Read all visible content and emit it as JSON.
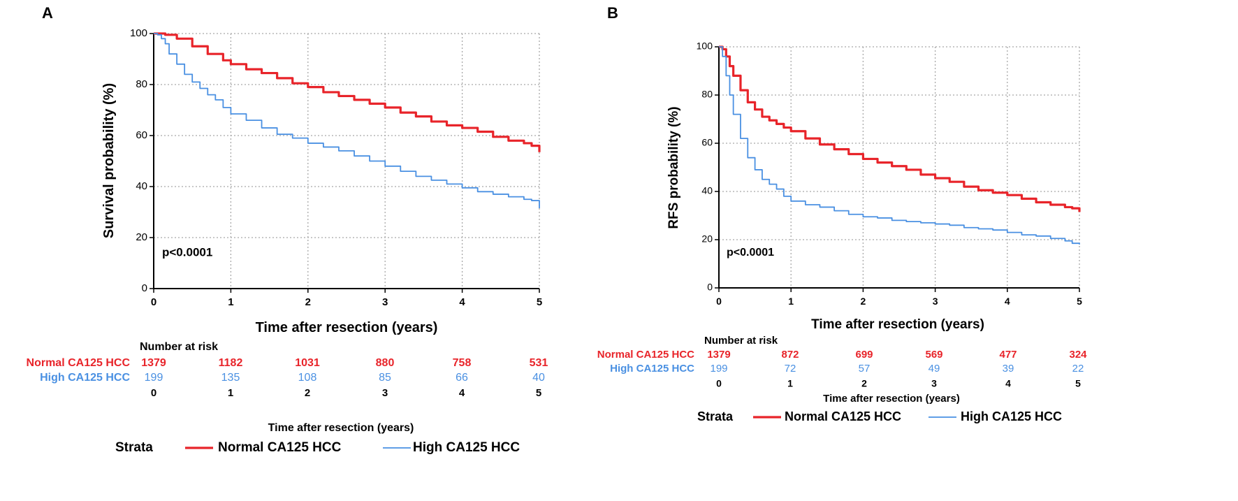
{
  "colors": {
    "normal": "#e8242a",
    "high": "#4a90e2",
    "axis": "#000000",
    "grid": "#a8a8a8"
  },
  "chart_data": [
    {
      "panel_label": "A",
      "type": "line",
      "title": "",
      "xlabel": "Time after resection (years)",
      "ylabel": "Survival probability (%)",
      "xlim": [
        0,
        5
      ],
      "ylim": [
        0,
        100
      ],
      "x_ticks": [
        "0",
        "1",
        "2",
        "3",
        "4",
        "5"
      ],
      "y_ticks": [
        "0",
        "20",
        "40",
        "60",
        "80",
        "100"
      ],
      "grid": true,
      "annotation": "p<0.0001",
      "series": [
        {
          "name": "Normal CA125 HCC",
          "color": "#e8242a",
          "x": [
            0,
            0.15,
            0.3,
            0.5,
            0.7,
            0.9,
            1.0,
            1.2,
            1.4,
            1.6,
            1.8,
            2.0,
            2.2,
            2.4,
            2.6,
            2.8,
            3.0,
            3.2,
            3.4,
            3.6,
            3.8,
            4.0,
            4.2,
            4.4,
            4.6,
            4.8,
            4.9,
            5.0
          ],
          "y": [
            100,
            99.5,
            98,
            95,
            92,
            89.5,
            88,
            86,
            84.5,
            82.5,
            80.5,
            79,
            77,
            75.5,
            74,
            72.5,
            71,
            69,
            67.5,
            65.5,
            64,
            63,
            61.5,
            59.5,
            58,
            57,
            56,
            53.5
          ]
        },
        {
          "name": "High CA125 HCC",
          "color": "#4a90e2",
          "x": [
            0,
            0.05,
            0.1,
            0.15,
            0.2,
            0.3,
            0.4,
            0.5,
            0.6,
            0.7,
            0.8,
            0.9,
            1.0,
            1.2,
            1.4,
            1.6,
            1.8,
            2.0,
            2.2,
            2.4,
            2.6,
            2.8,
            3.0,
            3.2,
            3.4,
            3.6,
            3.8,
            4.0,
            4.2,
            4.4,
            4.6,
            4.8,
            4.9,
            5.0
          ],
          "y": [
            100,
            99.5,
            98,
            96,
            92,
            88,
            84,
            81,
            78.5,
            76,
            74,
            71,
            68.5,
            66,
            63,
            60.5,
            59,
            57,
            55.5,
            54,
            52,
            50,
            48,
            46,
            44,
            42.5,
            41,
            39.5,
            38,
            37,
            36,
            35,
            34.5,
            31.5
          ]
        }
      ],
      "risk_table": {
        "title": "Number at risk",
        "rows": [
          {
            "label": "Normal CA125 HCC",
            "color": "#e8242a",
            "values": [
              "1379",
              "1182",
              "1031",
              "880",
              "758",
              "531"
            ]
          },
          {
            "label": "High CA125 HCC",
            "color": "#4a90e2",
            "values": [
              "199",
              "135",
              "108",
              "85",
              "66",
              "40"
            ]
          }
        ],
        "x_ticks": [
          "0",
          "1",
          "2",
          "3",
          "4",
          "5"
        ],
        "xlabel": "Time after resection (years)"
      },
      "legend": {
        "title": "Strata",
        "items": [
          "Normal CA125 HCC",
          "High CA125 HCC"
        ],
        "placement": "bottom"
      }
    },
    {
      "panel_label": "B",
      "type": "line",
      "title": "",
      "xlabel": "Time after resection (years)",
      "ylabel": "RFS probability (%)",
      "xlim": [
        0,
        5
      ],
      "ylim": [
        0,
        100
      ],
      "x_ticks": [
        "0",
        "1",
        "2",
        "3",
        "4",
        "5"
      ],
      "y_ticks": [
        "0",
        "20",
        "40",
        "60",
        "80",
        "100"
      ],
      "grid": true,
      "annotation": "p<0.0001",
      "series": [
        {
          "name": "Normal CA125 HCC",
          "color": "#e8242a",
          "x": [
            0,
            0.05,
            0.1,
            0.15,
            0.2,
            0.3,
            0.4,
            0.5,
            0.6,
            0.7,
            0.8,
            0.9,
            1.0,
            1.2,
            1.4,
            1.6,
            1.8,
            2.0,
            2.2,
            2.4,
            2.6,
            2.8,
            3.0,
            3.2,
            3.4,
            3.6,
            3.8,
            4.0,
            4.2,
            4.4,
            4.6,
            4.8,
            4.9,
            5.0
          ],
          "y": [
            100,
            99,
            96,
            92,
            88,
            82,
            77,
            74,
            71,
            69.5,
            68,
            66.5,
            65,
            62,
            59.5,
            57.5,
            55.5,
            53.5,
            52,
            50.5,
            49,
            47,
            45.5,
            44,
            42,
            40.5,
            39.5,
            38.5,
            37,
            35.5,
            34.5,
            33.5,
            33,
            31.5
          ]
        },
        {
          "name": "High CA125 HCC",
          "color": "#4a90e2",
          "x": [
            0,
            0.05,
            0.1,
            0.15,
            0.2,
            0.3,
            0.4,
            0.5,
            0.6,
            0.7,
            0.8,
            0.9,
            1.0,
            1.2,
            1.4,
            1.6,
            1.8,
            2.0,
            2.2,
            2.4,
            2.6,
            2.8,
            3.0,
            3.2,
            3.4,
            3.6,
            3.8,
            4.0,
            4.2,
            4.4,
            4.6,
            4.8,
            4.9,
            5.0
          ],
          "y": [
            100,
            96,
            88,
            80,
            72,
            62,
            54,
            49,
            45,
            43,
            41,
            38,
            36,
            34.5,
            33.5,
            32,
            30.5,
            29.5,
            29,
            28,
            27.5,
            27,
            26.5,
            26,
            25,
            24.5,
            24,
            23,
            22,
            21.5,
            20.5,
            19.5,
            18.5,
            18
          ]
        }
      ],
      "risk_table": {
        "title": "Number at risk",
        "rows": [
          {
            "label": "Normal CA125 HCC",
            "color": "#e8242a",
            "values": [
              "1379",
              "872",
              "699",
              "569",
              "477",
              "324"
            ]
          },
          {
            "label": "High CA125 HCC",
            "color": "#4a90e2",
            "values": [
              "199",
              "72",
              "57",
              "49",
              "39",
              "22"
            ]
          }
        ],
        "x_ticks": [
          "0",
          "1",
          "2",
          "3",
          "4",
          "5"
        ],
        "xlabel": "Time after resection (years)"
      },
      "legend": {
        "title": "Strata",
        "items": [
          "Normal CA125 HCC",
          "High CA125 HCC"
        ],
        "placement": "bottom"
      }
    }
  ]
}
